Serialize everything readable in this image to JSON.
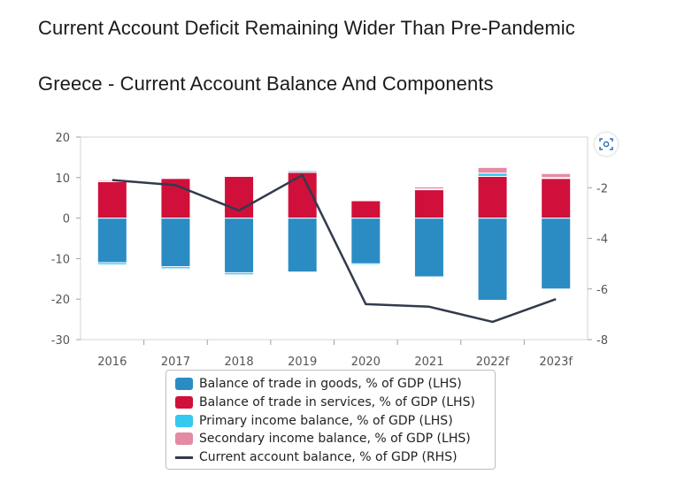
{
  "title": "Current Account Deficit Remaining Wider Than Pre-Pandemic",
  "subtitle": "Greece - Current Account Balance And Components",
  "colors": {
    "goods": "#2b8cc4",
    "services": "#d0103a",
    "primary": "#33c9f0",
    "secondary": "#e58aa3",
    "current": "#333a4d"
  },
  "icons": {
    "zoom": "scan-icon"
  },
  "chart_data": {
    "type": "bar",
    "stacked": true,
    "categories": [
      "2016",
      "2017",
      "2018",
      "2019",
      "2020",
      "2021",
      "2022f",
      "2023f"
    ],
    "left_axis": {
      "ticks": [
        "20",
        "10",
        "0",
        "-10",
        "-20",
        "-30"
      ],
      "ylim": [
        -30,
        20
      ]
    },
    "right_axis": {
      "ticks": [
        "-2",
        "-4",
        "-6",
        "-8"
      ],
      "ylim": [
        -8,
        0
      ]
    },
    "series": [
      {
        "name": "Balance of trade in goods, % of GDP (LHS)",
        "key": "goods",
        "axis": "left",
        "values": [
          -11.0,
          -12.0,
          -13.5,
          -13.3,
          -11.3,
          -14.5,
          -20.3,
          -17.5
        ]
      },
      {
        "name": "Balance of trade in services, % of GDP (LHS)",
        "key": "services",
        "axis": "left",
        "values": [
          9.0,
          9.8,
          10.3,
          11.3,
          4.3,
          7.0,
          10.3,
          9.8
        ]
      },
      {
        "name": "Primary income balance, % of GDP (LHS)",
        "key": "primary",
        "axis": "left",
        "values": [
          -0.5,
          -0.5,
          -0.5,
          0.4,
          -0.3,
          0.2,
          0.8,
          0.2
        ]
      },
      {
        "name": "Secondary income balance, % of GDP (LHS)",
        "key": "secondary",
        "axis": "left",
        "values": [
          0.3,
          0.2,
          0.2,
          0.2,
          0.2,
          0.5,
          1.4,
          1.0
        ]
      },
      {
        "name": "Current account balance, % of GDP (RHS)",
        "key": "current",
        "axis": "right",
        "type": "line",
        "values": [
          -1.7,
          -1.9,
          -2.9,
          -1.5,
          -6.6,
          -6.7,
          -7.3,
          -6.4
        ]
      }
    ],
    "legend_position": "bottom-center"
  }
}
